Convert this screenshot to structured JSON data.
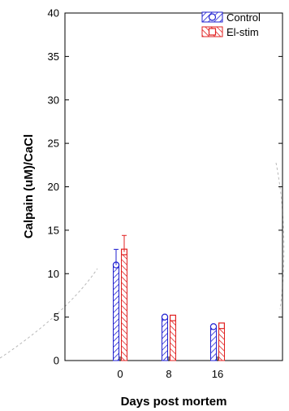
{
  "chart_data": {
    "type": "bar",
    "xlabel": "Days post mortem",
    "ylabel": "Calpain (uM)/CaCl",
    "categories": [
      "0",
      "8",
      "16"
    ],
    "ylim": [
      0,
      40
    ],
    "yticks": [
      0,
      5,
      10,
      15,
      20,
      25,
      30,
      35,
      40
    ],
    "grid": false,
    "legend_position": "top-right",
    "series": [
      {
        "name": "Control",
        "color": "#1f1fd0",
        "values": [
          11.0,
          5.0,
          3.9
        ],
        "error": [
          1.8,
          0.1,
          0.1
        ]
      },
      {
        "name": "El-stim",
        "color": "#e02020",
        "values": [
          12.5,
          4.9,
          4.0
        ],
        "error": [
          1.9,
          0.1,
          0.1
        ]
      }
    ]
  }
}
